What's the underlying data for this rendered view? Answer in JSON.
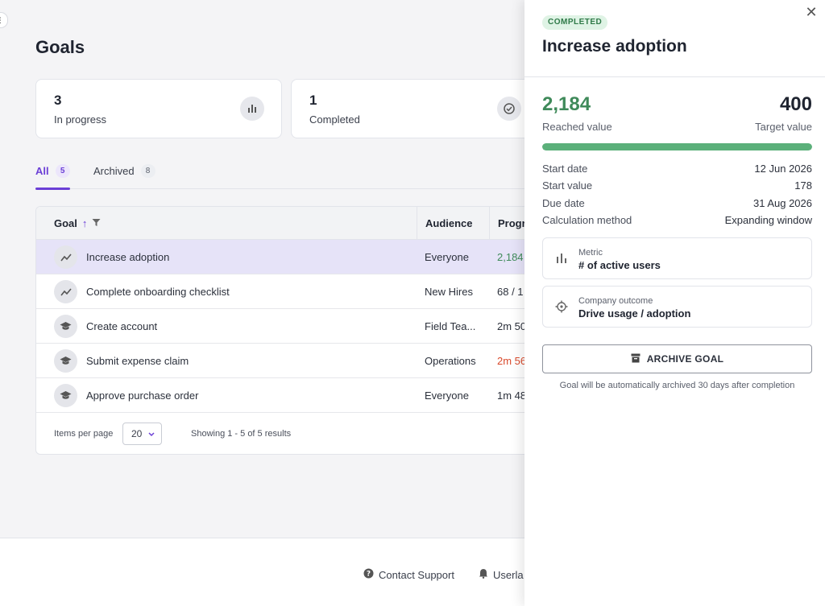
{
  "page": {
    "title": "Goals",
    "stats": [
      {
        "value": "3",
        "label": "In progress",
        "icon": "bar-chart-icon"
      },
      {
        "value": "1",
        "label": "Completed",
        "icon": "check-circle-icon"
      }
    ],
    "tabs": [
      {
        "label": "All",
        "count": "5"
      },
      {
        "label": "Archived",
        "count": "8"
      }
    ],
    "table": {
      "headers": {
        "goal": "Goal",
        "audience": "Audience",
        "progress": "Progr"
      },
      "rows": [
        {
          "icon": "trend-line-icon",
          "name": "Increase adoption",
          "audience": "Everyone",
          "progress": "2,184"
        },
        {
          "icon": "trend-line-icon",
          "name": "Complete onboarding checklist",
          "audience": "New Hires",
          "progress": "68 / 1"
        },
        {
          "icon": "graduation-cap-icon",
          "name": "Create account",
          "audience": "Field Tea...",
          "progress": "2m 50"
        },
        {
          "icon": "graduation-cap-icon",
          "name": "Submit expense claim",
          "audience": "Operations",
          "progress": "2m 56"
        },
        {
          "icon": "graduation-cap-icon",
          "name": "Approve purchase order",
          "audience": "Everyone",
          "progress": "1m 48"
        }
      ],
      "footer": {
        "items_per_page_label": "Items per page",
        "items_per_page_value": "20",
        "showing": "Showing 1 - 5 of 5 results"
      }
    },
    "footer_links": {
      "contact_support": "Contact Support",
      "userlane": "Userla"
    }
  },
  "drawer": {
    "status_badge": "COMPLETED",
    "title": "Increase adoption",
    "reached_value": "2,184",
    "reached_label": "Reached value",
    "target_value": "400",
    "target_label": "Target value",
    "progress_fraction": 1.0,
    "details": [
      {
        "label": "Start date",
        "value": "12 Jun 2026"
      },
      {
        "label": "Start value",
        "value": "178"
      },
      {
        "label": "Due date",
        "value": "31 Aug 2026"
      },
      {
        "label": "Calculation method",
        "value": "Expanding window"
      }
    ],
    "metric": {
      "label": "Metric",
      "value": "# of active users"
    },
    "outcome": {
      "label": "Company outcome",
      "value": "Drive usage / adoption"
    },
    "archive_button": "ARCHIVE GOAL",
    "archive_note": "Goal will be automatically archived 30 days after completion"
  },
  "colors": {
    "accent": "#6b3fd6",
    "success": "#3f8a5a",
    "progress_fill": "#5bb07a",
    "danger": "#d94a2c",
    "selected_row": "#e6e3f8"
  }
}
